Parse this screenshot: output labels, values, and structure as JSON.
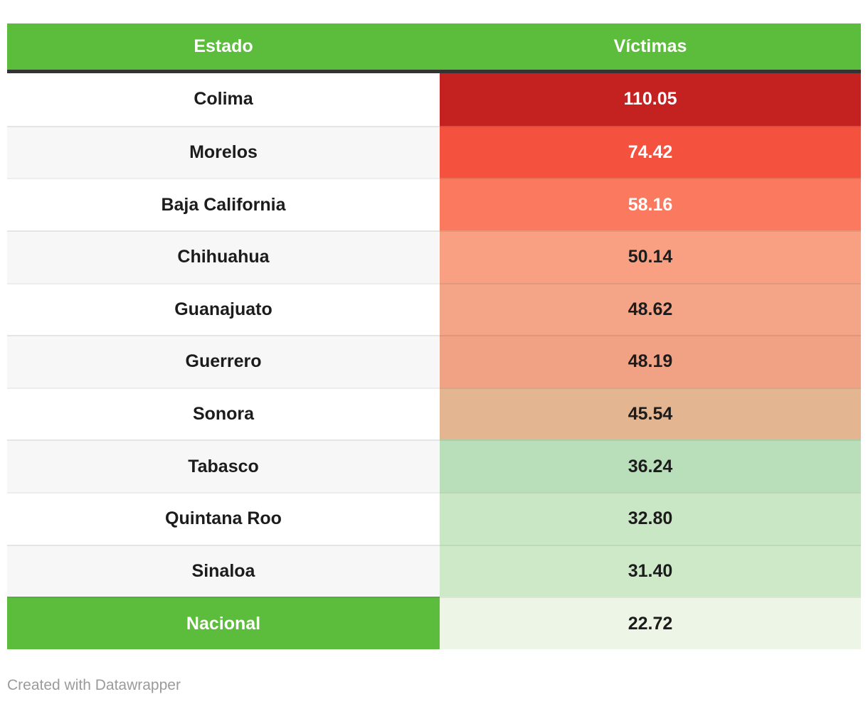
{
  "table": {
    "columns": [
      {
        "label": "Estado"
      },
      {
        "label": "Víctimas"
      }
    ],
    "rows": [
      {
        "estado": "Colima",
        "victimas": "110.05",
        "estado_bg": "#ffffff",
        "estado_color": "#1c1c1c",
        "victimas_bg": "#c42121",
        "victimas_color": "#ffffff"
      },
      {
        "estado": "Morelos",
        "victimas": "74.42",
        "estado_bg": "#f7f7f7",
        "estado_color": "#1c1c1c",
        "victimas_bg": "#f4513f",
        "victimas_color": "#ffffff"
      },
      {
        "estado": "Baja California",
        "victimas": "58.16",
        "estado_bg": "#ffffff",
        "estado_color": "#1c1c1c",
        "victimas_bg": "#fb7a5f",
        "victimas_color": "#ffffff"
      },
      {
        "estado": "Chihuahua",
        "victimas": "50.14",
        "estado_bg": "#f7f7f7",
        "estado_color": "#1c1c1c",
        "victimas_bg": "#f9a083",
        "victimas_color": "#1c1c1c"
      },
      {
        "estado": "Guanajuato",
        "victimas": "48.62",
        "estado_bg": "#ffffff",
        "estado_color": "#1c1c1c",
        "victimas_bg": "#f4a487",
        "victimas_color": "#1c1c1c"
      },
      {
        "estado": "Guerrero",
        "victimas": "48.19",
        "estado_bg": "#f7f7f7",
        "estado_color": "#1c1c1c",
        "victimas_bg": "#f2a284",
        "victimas_color": "#1c1c1c"
      },
      {
        "estado": "Sonora",
        "victimas": "45.54",
        "estado_bg": "#ffffff",
        "estado_color": "#1c1c1c",
        "victimas_bg": "#e4b591",
        "victimas_color": "#1c1c1c"
      },
      {
        "estado": "Tabasco",
        "victimas": "36.24",
        "estado_bg": "#f7f7f7",
        "estado_color": "#1c1c1c",
        "victimas_bg": "#b8dfb9",
        "victimas_color": "#1c1c1c"
      },
      {
        "estado": "Quintana Roo",
        "victimas": "32.80",
        "estado_bg": "#ffffff",
        "estado_color": "#1c1c1c",
        "victimas_bg": "#cae7c5",
        "victimas_color": "#1c1c1c"
      },
      {
        "estado": "Sinaloa",
        "victimas": "31.40",
        "estado_bg": "#f7f7f7",
        "estado_color": "#1c1c1c",
        "victimas_bg": "#cde9c8",
        "victimas_color": "#1c1c1c"
      },
      {
        "estado": "Nacional",
        "victimas": "22.72",
        "estado_bg": "#5cbc3c",
        "estado_color": "#ffffff",
        "victimas_bg": "#edf6e6",
        "victimas_color": "#1c1c1c"
      }
    ]
  },
  "colors": {
    "header_bg": "#5cbc3c",
    "header_text": "#ffffff",
    "header_border": "#333333",
    "zebra_odd": "#ffffff",
    "zebra_even": "#f7f7f7",
    "footer_text": "#9b9b9b"
  },
  "footer": {
    "credit": "Created with Datawrapper"
  },
  "chart_data": {
    "type": "table",
    "title": "",
    "columns": [
      "Estado",
      "Víctimas"
    ],
    "rows": [
      [
        "Colima",
        110.05
      ],
      [
        "Morelos",
        74.42
      ],
      [
        "Baja California",
        58.16
      ],
      [
        "Chihuahua",
        50.14
      ],
      [
        "Guanajuato",
        48.62
      ],
      [
        "Guerrero",
        48.19
      ],
      [
        "Sonora",
        45.54
      ],
      [
        "Tabasco",
        36.24
      ],
      [
        "Quintana Roo",
        32.8
      ],
      [
        "Sinaloa",
        31.4
      ],
      [
        "Nacional",
        22.72
      ]
    ],
    "heatmap_column": "Víctimas",
    "heatmap_scale": "red-high-to-green-low",
    "highlighted_row": "Nacional"
  }
}
